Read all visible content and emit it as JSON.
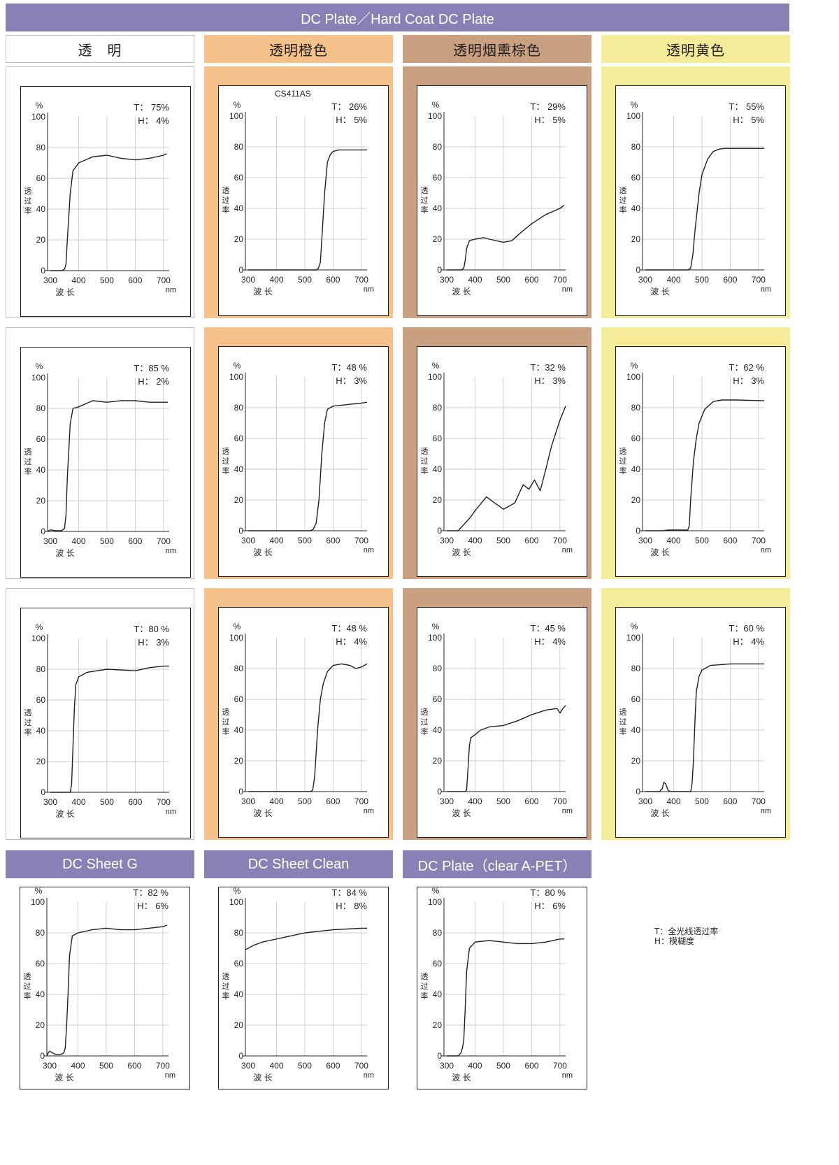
{
  "colors": {
    "banner": "#8781b5",
    "clear": "#ffffff",
    "clear_border": "#bcbec0",
    "orange": "#f3c189",
    "brown": "#c9a180",
    "yellow": "#f5ec9a",
    "curve": "#231f20",
    "grid": "#bcbec0"
  },
  "top_title": "DC Plate／Hard Coat DC Plate",
  "columns": [
    {
      "label": "透　明",
      "color_key": "clear"
    },
    {
      "label": "透明橙色",
      "color_key": "orange"
    },
    {
      "label": "透明烟熏棕色",
      "color_key": "brown"
    },
    {
      "label": "透明黄色",
      "color_key": "yellow"
    }
  ],
  "bottom_titles": [
    "DC Sheet G",
    "DC Sheet Clean",
    "DC Plate（clear A-PET）"
  ],
  "legend": {
    "t_line": "T：全光线透过率",
    "h_line": "H：模糊度"
  },
  "chart_data": [
    {
      "type": "line",
      "name_note": "",
      "T_label": "T：  75%",
      "H_label": "H：    4%",
      "x": [
        300,
        340,
        350,
        355,
        360,
        370,
        380,
        400,
        450,
        500,
        550,
        600,
        650,
        700,
        710
      ],
      "y": [
        0,
        0,
        1,
        4,
        20,
        50,
        65,
        70,
        74,
        75,
        73,
        72,
        73,
        75,
        76
      ]
    },
    {
      "type": "line",
      "name_note": "CS411AS",
      "T_label": "T：  26%",
      "H_label": "H：    5%",
      "x": [
        300,
        540,
        548,
        555,
        560,
        570,
        580,
        590,
        600,
        620,
        650,
        700,
        720
      ],
      "y": [
        0,
        0,
        1,
        5,
        20,
        50,
        70,
        75,
        77,
        78,
        78,
        78,
        78
      ]
    },
    {
      "type": "line",
      "name_note": "",
      "T_label": "T：  29%",
      "H_label": "H：    5%",
      "x": [
        300,
        350,
        360,
        365,
        370,
        380,
        400,
        430,
        450,
        500,
        530,
        560,
        600,
        650,
        700,
        715
      ],
      "y": [
        0,
        0,
        1,
        6,
        14,
        19,
        20,
        21,
        20,
        18,
        19,
        24,
        30,
        36,
        40,
        42
      ]
    },
    {
      "type": "line",
      "name_note": "",
      "T_label": "T：  55%",
      "H_label": "H：    5%",
      "x": [
        300,
        450,
        460,
        468,
        475,
        490,
        500,
        520,
        540,
        560,
        580,
        620,
        700,
        720
      ],
      "y": [
        0,
        0,
        1,
        10,
        25,
        50,
        62,
        72,
        77,
        78.5,
        79,
        79,
        79,
        79
      ]
    },
    {
      "type": "line",
      "name_note": "",
      "T_label": "T：85 %",
      "H_label": "H：    2%",
      "x": [
        290,
        300,
        320,
        340,
        350,
        355,
        360,
        370,
        380,
        400,
        450,
        500,
        550,
        600,
        650,
        700,
        715
      ],
      "y": [
        0,
        1,
        0.5,
        0.5,
        2,
        10,
        35,
        70,
        80,
        81,
        85,
        84,
        85,
        85,
        84,
        84,
        84
      ]
    },
    {
      "type": "line",
      "name_note": "",
      "T_label": "T：48 %",
      "H_label": "H：    3%",
      "x": [
        300,
        520,
        530,
        540,
        550,
        560,
        570,
        580,
        600,
        650,
        700,
        720
      ],
      "y": [
        0,
        0,
        1,
        5,
        20,
        50,
        70,
        79,
        81,
        82,
        83,
        83.5
      ]
    },
    {
      "type": "line",
      "name_note": "",
      "T_label": "T：32 %",
      "H_label": "H：    3%",
      "x": [
        300,
        340,
        360,
        380,
        400,
        440,
        470,
        500,
        540,
        570,
        590,
        610,
        630,
        650,
        670,
        700,
        720
      ],
      "y": [
        0,
        0,
        4,
        8,
        13,
        22,
        18,
        14,
        18,
        30,
        27,
        33,
        26,
        40,
        55,
        72,
        81
      ]
    },
    {
      "type": "line",
      "name_note": "",
      "T_label": "T：62 %",
      "H_label": "H：    3%",
      "x": [
        300,
        360,
        380,
        450,
        455,
        460,
        470,
        480,
        490,
        510,
        540,
        570,
        620,
        720
      ],
      "y": [
        0,
        0,
        0.5,
        0.5,
        3,
        20,
        45,
        60,
        70,
        79,
        84,
        85,
        85,
        84.5
      ]
    },
    {
      "type": "line",
      "name_note": "",
      "T_label": "T：80 %",
      "H_label": "H：    3%",
      "x": [
        300,
        370,
        375,
        380,
        385,
        390,
        400,
        430,
        500,
        600,
        650,
        700,
        720
      ],
      "y": [
        0,
        0,
        5,
        30,
        55,
        70,
        75,
        78,
        80,
        79,
        81,
        82,
        82
      ]
    },
    {
      "type": "line",
      "name_note": "",
      "T_label": "T：48 %",
      "H_label": "H：    4%",
      "x": [
        300,
        520,
        528,
        535,
        545,
        555,
        565,
        580,
        600,
        630,
        660,
        680,
        700,
        720
      ],
      "y": [
        0,
        0,
        1,
        10,
        40,
        60,
        70,
        78,
        82,
        83,
        82,
        80,
        81,
        83
      ]
    },
    {
      "type": "line",
      "name_note": "",
      "T_label": "T：45 %",
      "H_label": "H：    4%",
      "x": [
        300,
        365,
        370,
        375,
        380,
        385,
        400,
        420,
        450,
        500,
        550,
        600,
        650,
        690,
        700,
        710,
        720
      ],
      "y": [
        0,
        0,
        1,
        15,
        30,
        35,
        37,
        40,
        42,
        43,
        46,
        50,
        53,
        54,
        51,
        54,
        56
      ]
    },
    {
      "type": "line",
      "name_note": "",
      "T_label": "T：60 %",
      "H_label": "H：    4%",
      "x": [
        300,
        350,
        360,
        365,
        372,
        380,
        388,
        395,
        460,
        465,
        470,
        475,
        480,
        490,
        500,
        530,
        600,
        720
      ],
      "y": [
        0,
        0,
        2,
        6,
        5,
        1,
        0,
        0,
        0,
        5,
        20,
        45,
        65,
        75,
        79,
        82,
        83,
        83
      ]
    },
    {
      "type": "line",
      "name_note": "",
      "T_label": "T：82 %",
      "H_label": "H：    6%",
      "x": [
        290,
        295,
        300,
        310,
        320,
        340,
        350,
        355,
        360,
        365,
        370,
        380,
        400,
        450,
        500,
        550,
        600,
        650,
        700,
        715
      ],
      "y": [
        0,
        2,
        3,
        2,
        1,
        1,
        2,
        5,
        20,
        40,
        65,
        78,
        80,
        82,
        83,
        82,
        82,
        83,
        84,
        85
      ]
    },
    {
      "type": "line",
      "name_note": "",
      "T_label": "T：84 %",
      "H_label": "H：    8%",
      "x": [
        290,
        300,
        320,
        350,
        400,
        450,
        500,
        550,
        600,
        650,
        700,
        720
      ],
      "y": [
        69,
        70,
        72,
        74,
        76,
        78,
        80,
        81,
        82,
        82.5,
        83,
        83
      ]
    },
    {
      "type": "line",
      "name_note": "",
      "T_label": "T：80 %",
      "H_label": "H：    6%",
      "x": [
        300,
        340,
        345,
        350,
        355,
        360,
        365,
        370,
        380,
        400,
        450,
        500,
        550,
        600,
        650,
        700,
        715
      ],
      "y": [
        0,
        0,
        1,
        2,
        5,
        10,
        30,
        55,
        70,
        74,
        75,
        74,
        73,
        73,
        74,
        76,
        76
      ]
    }
  ],
  "axis": {
    "y_unit": "%",
    "x_unit": "nm",
    "x_label": "波 长",
    "y_label": [
      "透",
      "过",
      "率"
    ],
    "x_ticks": [
      "300",
      "400",
      "500",
      "600",
      "700"
    ],
    "y_ticks": [
      "0",
      "20",
      "40",
      "60",
      "80",
      "100"
    ],
    "xlim": [
      290,
      720
    ],
    "ylim": [
      0,
      100
    ]
  }
}
